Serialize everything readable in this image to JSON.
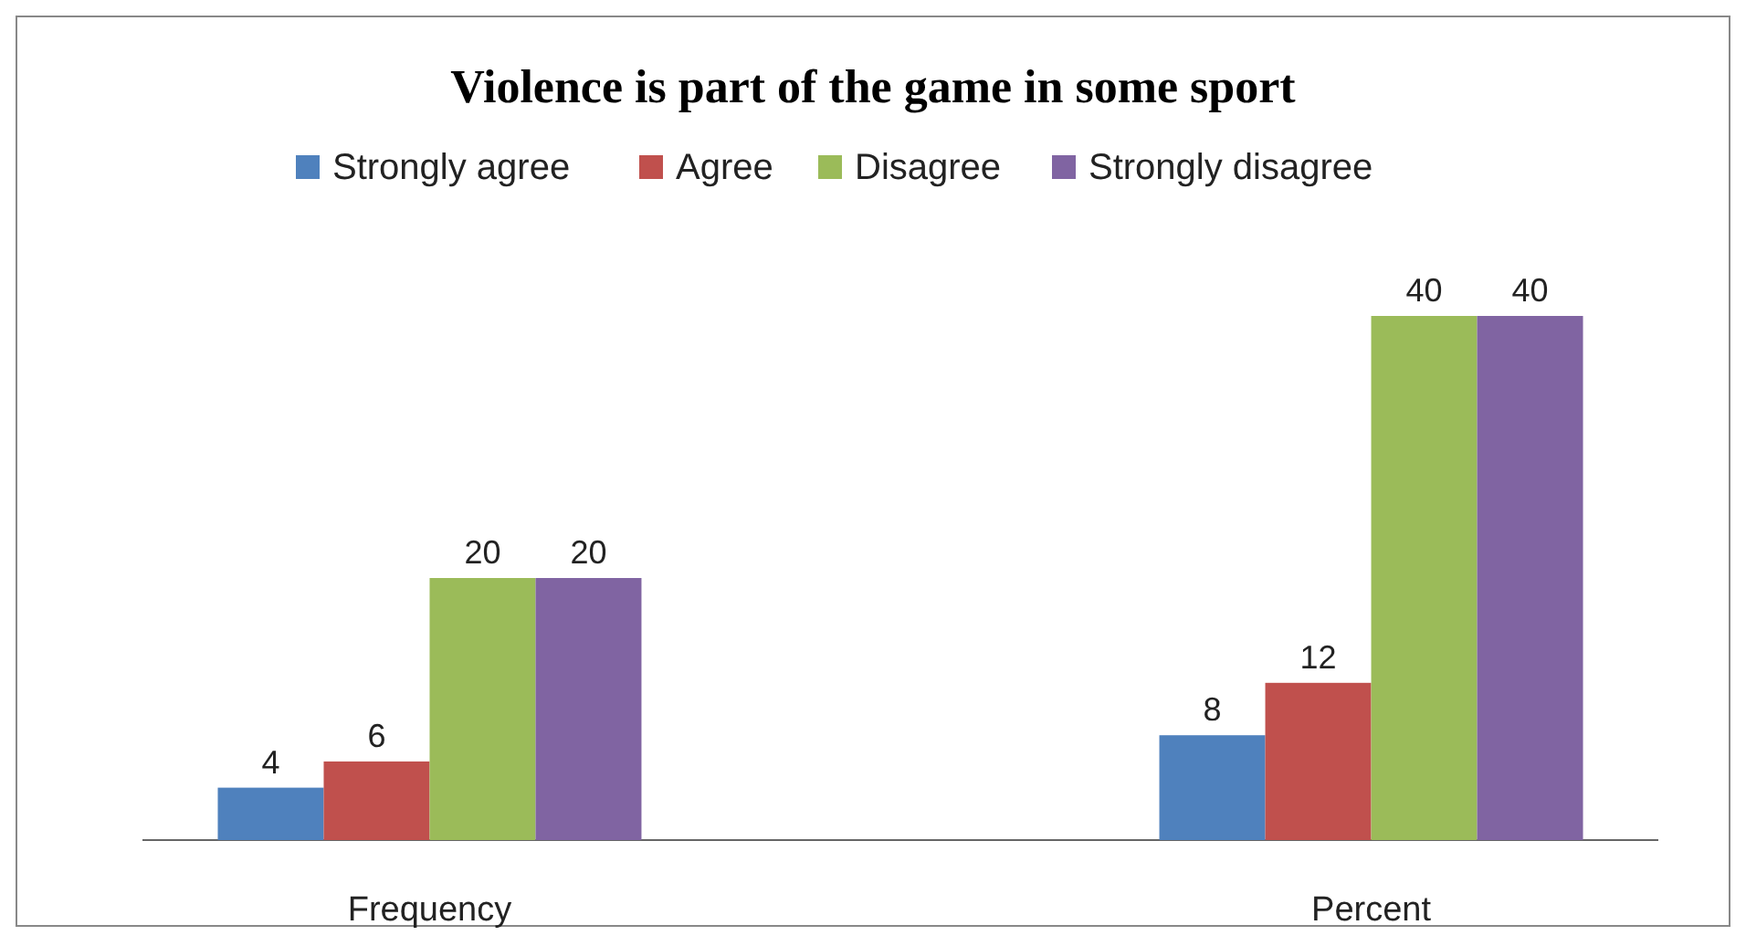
{
  "chart_data": {
    "type": "bar",
    "title": "Violence is part of the game in some sport",
    "categories": [
      "Frequency",
      "Percent"
    ],
    "series": [
      {
        "name": "Strongly agree",
        "color": "#4f81bd",
        "values": [
          4,
          8
        ]
      },
      {
        "name": "Agree",
        "color": "#c0504d",
        "values": [
          6,
          12
        ]
      },
      {
        "name": "Disagree",
        "color": "#9bbb59",
        "values": [
          20,
          40
        ]
      },
      {
        "name": "Strongly disagree",
        "color": "#8064a2",
        "values": [
          20,
          40
        ]
      }
    ],
    "data_labels": true,
    "legend": "top"
  }
}
